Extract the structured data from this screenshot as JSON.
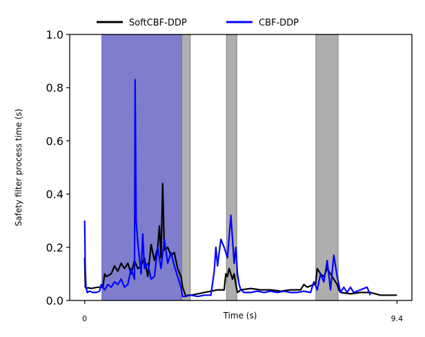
{
  "chart_data": {
    "type": "line",
    "title": "",
    "xlabel": "Time (s)",
    "ylabel": "Safety filter process time (s)",
    "xlim": [
      -0.45,
      9.85
    ],
    "ylim": [
      0.0,
      1.0
    ],
    "x_ticks": [
      0,
      9.4
    ],
    "x_tick_labels": [
      "0",
      "9.4"
    ],
    "y_ticks": [
      0.0,
      0.2,
      0.4,
      0.6,
      0.8,
      1.0
    ],
    "y_tick_labels": [
      "0.0",
      "0.2",
      "0.4",
      "0.6",
      "0.8",
      "1.0"
    ],
    "grid": false,
    "legend_placement": "top-center, above plot",
    "colors": {
      "softcbf": "#000000",
      "cbf": "#0000ff",
      "gray_span": "#9a9a9a",
      "blue_span": "#7070c8"
    },
    "shaded_regions": [
      {
        "series": "CBF-DDP",
        "x0": 0.52,
        "x1": 2.92
      },
      {
        "series": "SoftCBF-DDP",
        "x0": 2.92,
        "x1": 3.18
      },
      {
        "series": "SoftCBF-DDP",
        "x0": 4.27,
        "x1": 4.58
      },
      {
        "series": "SoftCBF-DDP",
        "x0": 6.96,
        "x1": 7.63
      }
    ],
    "series": [
      {
        "name": "SoftCBF-DDP",
        "color": "#000000",
        "x": [
          0.0,
          0.02,
          0.05,
          0.1,
          0.2,
          0.4,
          0.55,
          0.6,
          0.65,
          0.8,
          0.9,
          1.0,
          1.1,
          1.2,
          1.3,
          1.4,
          1.5,
          1.6,
          1.7,
          1.8,
          1.9,
          2.0,
          2.1,
          2.2,
          2.25,
          2.3,
          2.35,
          2.4,
          2.5,
          2.6,
          2.7,
          2.8,
          2.9,
          2.95,
          3.05,
          3.1,
          3.2,
          3.4,
          3.6,
          3.8,
          4.0,
          4.2,
          4.25,
          4.3,
          4.35,
          4.45,
          4.5,
          4.55,
          4.6,
          4.7,
          5.0,
          5.3,
          5.6,
          5.9,
          6.2,
          6.5,
          6.6,
          6.7,
          6.8,
          6.9,
          6.95,
          7.0,
          7.1,
          7.2,
          7.3,
          7.4,
          7.5,
          7.6,
          7.65,
          7.7,
          8.0,
          8.3,
          8.6,
          8.9,
          9.4
        ],
        "y": [
          0.16,
          0.05,
          0.045,
          0.048,
          0.045,
          0.05,
          0.05,
          0.1,
          0.09,
          0.1,
          0.13,
          0.11,
          0.14,
          0.12,
          0.14,
          0.1,
          0.15,
          0.12,
          0.13,
          0.16,
          0.09,
          0.21,
          0.15,
          0.2,
          0.28,
          0.16,
          0.44,
          0.19,
          0.2,
          0.17,
          0.18,
          0.12,
          0.09,
          0.05,
          0.015,
          0.02,
          0.02,
          0.025,
          0.03,
          0.035,
          0.04,
          0.04,
          0.1,
          0.09,
          0.12,
          0.08,
          0.1,
          0.06,
          0.03,
          0.04,
          0.045,
          0.04,
          0.04,
          0.035,
          0.04,
          0.04,
          0.06,
          0.05,
          0.055,
          0.06,
          0.06,
          0.12,
          0.1,
          0.09,
          0.12,
          0.1,
          0.08,
          0.06,
          0.04,
          0.03,
          0.025,
          0.03,
          0.03,
          0.02,
          0.02
        ]
      },
      {
        "name": "CBF-DDP",
        "color": "#0000ff",
        "x": [
          0.0,
          0.02,
          0.04,
          0.08,
          0.15,
          0.25,
          0.35,
          0.45,
          0.5,
          0.55,
          0.6,
          0.7,
          0.8,
          0.9,
          1.0,
          1.1,
          1.2,
          1.3,
          1.4,
          1.5,
          1.52,
          1.55,
          1.6,
          1.7,
          1.75,
          1.8,
          1.9,
          2.0,
          2.1,
          2.2,
          2.3,
          2.4,
          2.5,
          2.6,
          2.7,
          2.8,
          2.9,
          2.95,
          3.0,
          3.2,
          3.4,
          3.6,
          3.8,
          3.9,
          3.95,
          4.0,
          4.1,
          4.2,
          4.3,
          4.4,
          4.5,
          4.55,
          4.6,
          4.65,
          4.7,
          4.8,
          5.0,
          5.2,
          5.4,
          5.6,
          5.8,
          6.0,
          6.2,
          6.4,
          6.6,
          6.8,
          6.9,
          7.0,
          7.1,
          7.2,
          7.3,
          7.4,
          7.5,
          7.6,
          7.7,
          7.8,
          7.9,
          8.0,
          8.1,
          8.3,
          8.5,
          8.6
        ],
        "y": [
          0.3,
          0.12,
          0.05,
          0.03,
          0.035,
          0.03,
          0.03,
          0.035,
          0.06,
          0.05,
          0.04,
          0.06,
          0.05,
          0.07,
          0.06,
          0.08,
          0.05,
          0.06,
          0.12,
          0.08,
          0.83,
          0.3,
          0.22,
          0.1,
          0.25,
          0.12,
          0.14,
          0.08,
          0.09,
          0.2,
          0.12,
          0.23,
          0.14,
          0.18,
          0.13,
          0.09,
          0.05,
          0.015,
          0.015,
          0.02,
          0.015,
          0.02,
          0.02,
          0.11,
          0.2,
          0.13,
          0.23,
          0.2,
          0.16,
          0.32,
          0.14,
          0.2,
          0.1,
          0.06,
          0.04,
          0.03,
          0.03,
          0.035,
          0.03,
          0.035,
          0.03,
          0.035,
          0.03,
          0.03,
          0.035,
          0.03,
          0.07,
          0.04,
          0.1,
          0.07,
          0.15,
          0.04,
          0.17,
          0.09,
          0.03,
          0.05,
          0.03,
          0.05,
          0.03,
          0.04,
          0.05,
          0.02
        ]
      }
    ]
  }
}
